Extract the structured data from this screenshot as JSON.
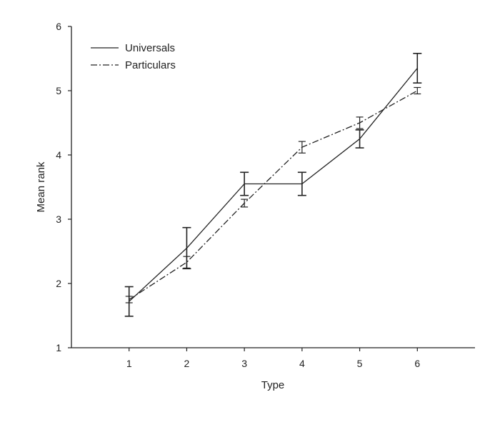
{
  "chart_data": {
    "type": "line",
    "xlabel": "Type",
    "ylabel": "Mean rank",
    "x": [
      1,
      2,
      3,
      4,
      5,
      6
    ],
    "xlim": [
      0,
      7
    ],
    "ylim": [
      1,
      6
    ],
    "x_ticks": [
      1,
      2,
      3,
      4,
      5,
      6
    ],
    "y_ticks": [
      1,
      2,
      3,
      4,
      5,
      6
    ],
    "grid": false,
    "legend_position": "top-left",
    "series": [
      {
        "name": "Universals",
        "style": "solid",
        "color": "#222222",
        "values": [
          1.72,
          2.55,
          3.55,
          3.55,
          4.25,
          5.35
        ],
        "error": [
          0.23,
          0.32,
          0.18,
          0.18,
          0.14,
          0.23
        ]
      },
      {
        "name": "Particulars",
        "style": "dash-dot",
        "color": "#222222",
        "values": [
          1.75,
          2.33,
          3.25,
          4.12,
          4.5,
          5.0
        ],
        "error": [
          0.05,
          0.09,
          0.06,
          0.09,
          0.09,
          0.05
        ]
      }
    ]
  }
}
